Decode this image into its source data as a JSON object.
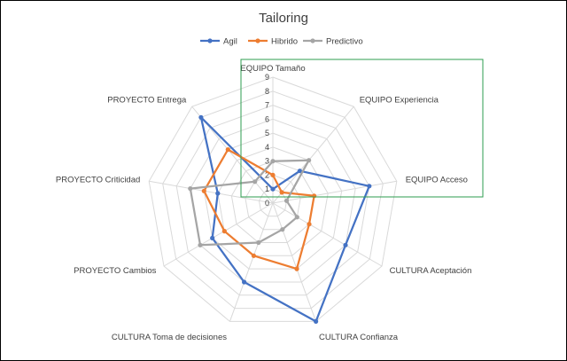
{
  "chart_data": {
    "type": "radar",
    "title": "Tailoring",
    "axes": [
      "EQUIPO Tamaño",
      "EQUIPO Experiencia",
      "EQUIPO Acceso",
      "CULTURA Aceptación",
      "CULTURA Confianza",
      "CULTURA Toma de decisiones",
      "PROYECTO Cambios",
      "PROYECTO Criticidad",
      "PROYECTO Entrega"
    ],
    "rlim": [
      0,
      9
    ],
    "ticks": [
      "0",
      "1",
      "2",
      "3",
      "4",
      "5",
      "6",
      "7",
      "8",
      "9"
    ],
    "legend_position": "top",
    "series": [
      {
        "name": "Agil",
        "color": "#4472C4",
        "values": [
          1,
          3,
          7,
          6,
          9,
          6,
          5,
          4,
          8
        ]
      },
      {
        "name": "Hibrido",
        "color": "#ED7D31",
        "values": [
          2,
          1,
          3,
          3,
          5,
          4,
          4,
          5,
          5
        ]
      },
      {
        "name": "Predictivo",
        "color": "#A5A5A5",
        "values": [
          3,
          4,
          1,
          2,
          2,
          3,
          6,
          6,
          2
        ]
      }
    ]
  }
}
